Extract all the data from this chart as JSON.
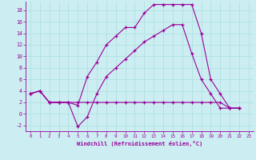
{
  "xlabel": "Windchill (Refroidissement éolien,°C)",
  "background_color": "#cceef2",
  "line_color": "#990099",
  "xlim": [
    -0.5,
    23.5
  ],
  "ylim": [
    -3.0,
    19.5
  ],
  "xticks": [
    0,
    1,
    2,
    3,
    4,
    5,
    6,
    7,
    8,
    9,
    10,
    11,
    12,
    13,
    14,
    15,
    16,
    17,
    18,
    19,
    20,
    21,
    22,
    23
  ],
  "yticks": [
    -2,
    0,
    2,
    4,
    6,
    8,
    10,
    12,
    14,
    16,
    18
  ],
  "line1_x": [
    0,
    1,
    2,
    3,
    4,
    5,
    6,
    7,
    8,
    9,
    10,
    11,
    12,
    13,
    14,
    15,
    16,
    17,
    18,
    19,
    20,
    21,
    22
  ],
  "line1_y": [
    3.5,
    4.0,
    2.0,
    2.0,
    2.0,
    1.5,
    6.5,
    9.0,
    12.0,
    13.5,
    15.0,
    15.0,
    17.5,
    19.0,
    19.0,
    19.0,
    19.0,
    19.0,
    14.0,
    6.0,
    3.5,
    1.0,
    1.0
  ],
  "line2_x": [
    0,
    1,
    2,
    3,
    4,
    5,
    6,
    7,
    8,
    9,
    10,
    11,
    12,
    13,
    14,
    15,
    16,
    17,
    18,
    19,
    20,
    21,
    22
  ],
  "line2_y": [
    3.5,
    4.0,
    2.0,
    2.0,
    2.0,
    -2.2,
    -0.5,
    3.5,
    6.5,
    8.0,
    9.5,
    11.0,
    12.5,
    13.5,
    14.5,
    15.5,
    15.5,
    10.5,
    6.0,
    3.5,
    1.0,
    1.0,
    1.0
  ],
  "line3_x": [
    0,
    1,
    2,
    3,
    4,
    5,
    6,
    7,
    8,
    9,
    10,
    11,
    12,
    13,
    14,
    15,
    16,
    17,
    18,
    19,
    20,
    21,
    22
  ],
  "line3_y": [
    3.5,
    4.0,
    2.0,
    2.0,
    2.0,
    2.0,
    2.0,
    2.0,
    2.0,
    2.0,
    2.0,
    2.0,
    2.0,
    2.0,
    2.0,
    2.0,
    2.0,
    2.0,
    2.0,
    2.0,
    2.0,
    1.0,
    1.0
  ],
  "grid_color": "#aadddd",
  "marker": "+"
}
